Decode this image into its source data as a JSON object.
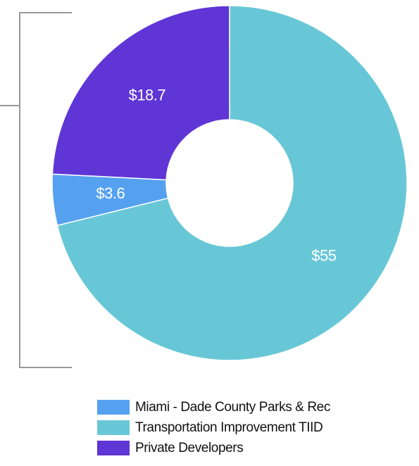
{
  "chart_data": {
    "type": "pie",
    "categories": [
      "Miami - Dade County Parks & Rec",
      "Transportation Improvement TIID",
      "Private Developers"
    ],
    "values": [
      3.6,
      55,
      18.7
    ],
    "value_labels": [
      "$3.6",
      "$55",
      "$18.7"
    ],
    "colors": [
      "#55a1f0",
      "#68c7d6",
      "#5f35d6"
    ],
    "donut": true
  }
}
